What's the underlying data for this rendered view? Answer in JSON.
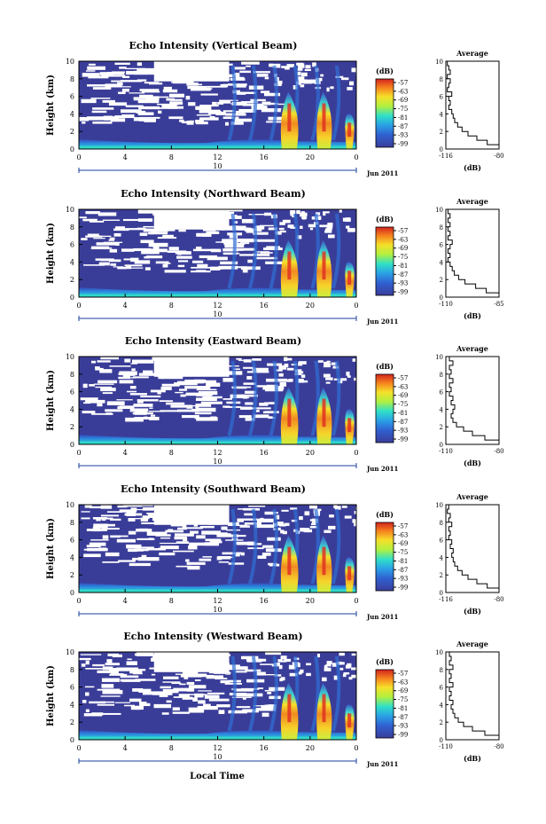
{
  "figure": {
    "shared_xlabel": "Local Time",
    "date_label": "Jun 2011",
    "date_marker_tick": "10",
    "colorbar_unit": "(dB)"
  },
  "chart_data": [
    {
      "type": "heatmap",
      "title": "Echo Intensity (Vertical Beam)",
      "ylabel": "Height (km)",
      "x_ticks": [
        "0",
        "4",
        "8",
        "12",
        "16",
        "20",
        "0"
      ],
      "y_ticks": [
        "0",
        "2",
        "4",
        "6",
        "8",
        "10"
      ],
      "xlim_hours": [
        0,
        24
      ],
      "ylim_km": [
        0,
        10
      ],
      "colorbar": {
        "label": "(dB)",
        "ticks": [
          "-57",
          "-63",
          "-69",
          "-75",
          "-81",
          "-87",
          "-93",
          "-99"
        ],
        "range_db": [
          -99,
          -57
        ]
      },
      "average_profile": {
        "title": "Average",
        "xlabel": "(dB)",
        "x_ticks": [
          "-116",
          "-80"
        ],
        "y_ticks": [
          "0",
          "2",
          "4",
          "6",
          "8",
          "10"
        ],
        "height_km": [
          0,
          0.5,
          1,
          1.5,
          2,
          2.5,
          3,
          3.5,
          4,
          4.5,
          5,
          5.5,
          6,
          6.5,
          7,
          7.5,
          8,
          8.5,
          9,
          9.5,
          10
        ],
        "intensity_db": [
          -80,
          -88,
          -95,
          -101,
          -105,
          -108,
          -110,
          -111,
          -112,
          -114,
          -113,
          -114,
          -112,
          -115,
          -114,
          -113,
          -115,
          -113,
          -114,
          -115,
          -115
        ]
      }
    },
    {
      "type": "heatmap",
      "title": "Echo Intensity (Northward Beam)",
      "ylabel": "Height (km)",
      "x_ticks": [
        "0",
        "4",
        "8",
        "12",
        "16",
        "20",
        "0"
      ],
      "y_ticks": [
        "0",
        "2",
        "4",
        "6",
        "8",
        "10"
      ],
      "xlim_hours": [
        0,
        24
      ],
      "ylim_km": [
        0,
        10
      ],
      "colorbar": {
        "label": "(dB)",
        "ticks": [
          "-57",
          "-63",
          "-69",
          "-75",
          "-81",
          "-87",
          "-93",
          "-99"
        ],
        "range_db": [
          -99,
          -57
        ]
      },
      "average_profile": {
        "title": "Average",
        "xlabel": "(dB)",
        "x_ticks": [
          "-110",
          "-85"
        ],
        "y_ticks": [
          "0",
          "2",
          "4",
          "6",
          "8",
          "10"
        ],
        "height_km": [
          0,
          0.5,
          1,
          1.5,
          2,
          2.5,
          3,
          3.5,
          4,
          4.5,
          5,
          5.5,
          6,
          6.5,
          7,
          7.5,
          8,
          8.5,
          9,
          9.5,
          10
        ],
        "intensity_db": [
          -85,
          -91,
          -96,
          -101,
          -104,
          -106,
          -107,
          -108,
          -109,
          -108,
          -109,
          -108,
          -107,
          -109,
          -108,
          -109,
          -108,
          -109,
          -108,
          -109,
          -109
        ]
      }
    },
    {
      "type": "heatmap",
      "title": "Echo Intensity (Eastward Beam)",
      "ylabel": "Height (km)",
      "x_ticks": [
        "0",
        "4",
        "8",
        "12",
        "16",
        "20",
        "0"
      ],
      "y_ticks": [
        "0",
        "2",
        "4",
        "6",
        "8",
        "10"
      ],
      "xlim_hours": [
        0,
        24
      ],
      "ylim_km": [
        0,
        10
      ],
      "colorbar": {
        "label": "(dB)",
        "ticks": [
          "-57",
          "-63",
          "-69",
          "-75",
          "-81",
          "-87",
          "-93",
          "-99"
        ],
        "range_db": [
          -99,
          -57
        ]
      },
      "average_profile": {
        "title": "Average",
        "xlabel": "(dB)",
        "x_ticks": [
          "-110",
          "-80"
        ],
        "y_ticks": [
          "0",
          "2",
          "4",
          "6",
          "8",
          "10"
        ],
        "height_km": [
          0,
          0.5,
          1,
          1.5,
          2,
          2.5,
          3,
          3.5,
          4,
          4.5,
          5,
          5.5,
          6,
          6.5,
          7,
          7.5,
          8,
          8.5,
          9,
          9.5,
          10
        ],
        "intensity_db": [
          -80,
          -88,
          -95,
          -100,
          -104,
          -106,
          -107,
          -106,
          -105,
          -107,
          -106,
          -108,
          -107,
          -108,
          -106,
          -108,
          -107,
          -108,
          -106,
          -108,
          -108
        ]
      }
    },
    {
      "type": "heatmap",
      "title": "Echo Intensity (Southward Beam)",
      "ylabel": "Height (km)",
      "x_ticks": [
        "0",
        "4",
        "8",
        "12",
        "16",
        "20",
        "0"
      ],
      "y_ticks": [
        "0",
        "2",
        "4",
        "6",
        "8",
        "10"
      ],
      "xlim_hours": [
        0,
        24
      ],
      "ylim_km": [
        0,
        10
      ],
      "colorbar": {
        "label": "(dB)",
        "ticks": [
          "-57",
          "-63",
          "-69",
          "-75",
          "-81",
          "-87",
          "-93",
          "-99"
        ],
        "range_db": [
          -99,
          -57
        ]
      },
      "average_profile": {
        "title": "Average",
        "xlabel": "(dB)",
        "x_ticks": [
          "-116",
          "-80"
        ],
        "y_ticks": [
          "0",
          "2",
          "4",
          "6",
          "8",
          "10"
        ],
        "height_km": [
          0,
          0.5,
          1,
          1.5,
          2,
          2.5,
          3,
          3.5,
          4,
          4.5,
          5,
          5.5,
          6,
          6.5,
          7,
          7.5,
          8,
          8.5,
          9,
          9.5,
          10
        ],
        "intensity_db": [
          -80,
          -88,
          -95,
          -101,
          -105,
          -108,
          -110,
          -111,
          -112,
          -111,
          -113,
          -112,
          -114,
          -113,
          -114,
          -112,
          -114,
          -113,
          -115,
          -114,
          -115
        ]
      }
    },
    {
      "type": "heatmap",
      "title": "Echo Intensity (Westward Beam)",
      "ylabel": "Height (km)",
      "x_ticks": [
        "0",
        "4",
        "8",
        "12",
        "16",
        "20",
        "0"
      ],
      "y_ticks": [
        "0",
        "2",
        "4",
        "6",
        "8",
        "10"
      ],
      "xlim_hours": [
        0,
        24
      ],
      "ylim_km": [
        0,
        10
      ],
      "colorbar": {
        "label": "(dB)",
        "ticks": [
          "-57",
          "-63",
          "-69",
          "-75",
          "-81",
          "-87",
          "-93",
          "-99"
        ],
        "range_db": [
          -99,
          -57
        ]
      },
      "average_profile": {
        "title": "Average",
        "xlabel": "(dB)",
        "x_ticks": [
          "-110",
          "-80"
        ],
        "y_ticks": [
          "0",
          "2",
          "4",
          "6",
          "8",
          "10"
        ],
        "height_km": [
          0,
          0.5,
          1,
          1.5,
          2,
          2.5,
          3,
          3.5,
          4,
          4.5,
          5,
          5.5,
          6,
          6.5,
          7,
          7.5,
          8,
          8.5,
          9,
          9.5,
          10
        ],
        "intensity_db": [
          -80,
          -88,
          -95,
          -100,
          -103,
          -105,
          -106,
          -107,
          -106,
          -108,
          -107,
          -108,
          -106,
          -108,
          -107,
          -108,
          -106,
          -108,
          -107,
          -108,
          -108
        ]
      }
    }
  ]
}
